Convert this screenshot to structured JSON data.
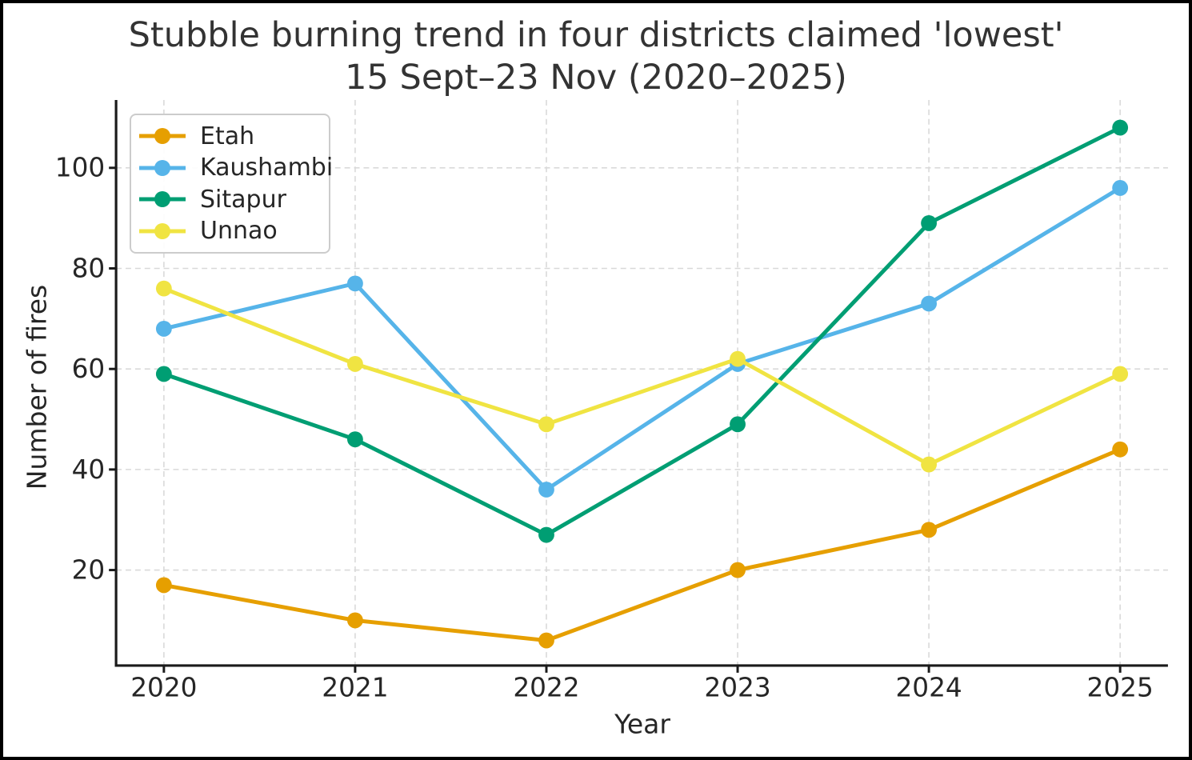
{
  "chart": {
    "title_line1": "Stubble burning trend in four districts claimed 'lowest'",
    "title_line2": "15 Sept–23 Nov (2020–2025)",
    "xlabel": "Year",
    "ylabel": "Number of fires"
  },
  "chart_data": {
    "type": "line",
    "title": "Stubble burning trend in four districts claimed 'lowest' 15 Sept–23 Nov (2020–2025)",
    "xlabel": "Year",
    "ylabel": "Number of fires",
    "x": [
      2020,
      2021,
      2022,
      2023,
      2024,
      2025
    ],
    "x_tick_labels": [
      "2020",
      "2021",
      "2022",
      "2023",
      "2024",
      "2025"
    ],
    "y_ticks": [
      20,
      40,
      60,
      80,
      100
    ],
    "xlim": [
      2019.75,
      2025.25
    ],
    "ylim": [
      1,
      113.5
    ],
    "grid": true,
    "grid_style": "dashed",
    "legend_position": "upper-left",
    "marker": "circle",
    "series": [
      {
        "name": "Etah",
        "color": "#E69F00",
        "values": [
          17,
          10,
          6,
          20,
          28,
          44
        ]
      },
      {
        "name": "Kaushambi",
        "color": "#56B4E9",
        "values": [
          68,
          77,
          36,
          61,
          73,
          96
        ]
      },
      {
        "name": "Sitapur",
        "color": "#009E73",
        "values": [
          59,
          46,
          27,
          49,
          89,
          108
        ]
      },
      {
        "name": "Unnao",
        "color": "#F0E442",
        "values": [
          76,
          61,
          49,
          62,
          41,
          59
        ]
      }
    ]
  },
  "colors": {
    "grid": "#d9d9d9",
    "spine": "#1a1a1a",
    "tick_text": "#262626",
    "title_text": "#333333",
    "legend_border": "#cccccc",
    "background": "#ffffff",
    "figure_border": "#000000"
  }
}
